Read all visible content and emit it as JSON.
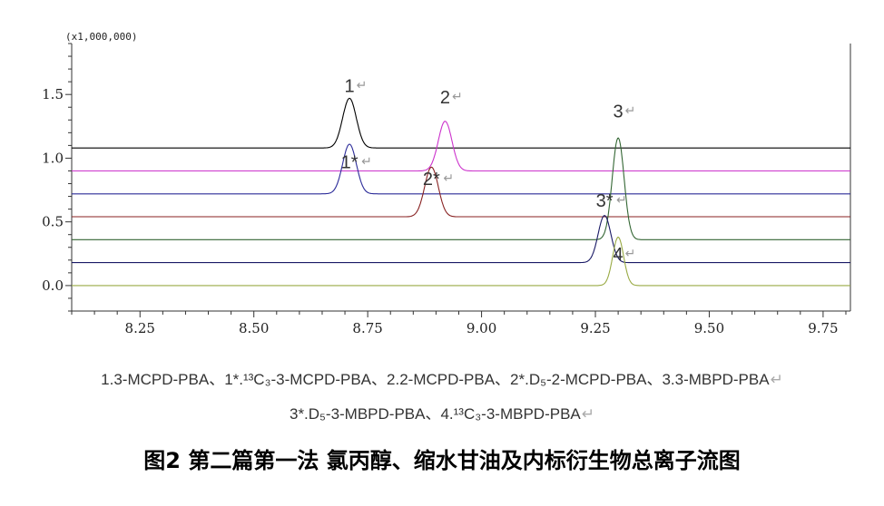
{
  "chart_data": {
    "type": "line",
    "y_scale_label": "(x1,000,000)",
    "xlim": [
      8.1,
      9.81
    ],
    "ylim": [
      -0.2,
      1.9
    ],
    "x_ticks": [
      8.25,
      8.5,
      8.75,
      9.0,
      9.25,
      9.5,
      9.75
    ],
    "x_tick_labels": [
      "8.25",
      "8.50",
      "8.75",
      "9.00",
      "9.25",
      "9.50",
      "9.75"
    ],
    "y_ticks": [
      0.0,
      0.5,
      1.0,
      1.5
    ],
    "y_tick_labels": [
      "0.0",
      "0.5",
      "1.0",
      "1.5"
    ],
    "grid": false,
    "series": [
      {
        "color": "#000000",
        "baseline": 1.08,
        "peak_x": 8.71,
        "peak_height": 0.39,
        "peak_width": 0.015,
        "xmin": 8.1,
        "xmax": 9.81
      },
      {
        "color": "#cc33cc",
        "baseline": 0.9,
        "peak_x": 8.92,
        "peak_height": 0.39,
        "peak_width": 0.015,
        "xmin": 8.1,
        "xmax": 9.81
      },
      {
        "color": "#2b2b99",
        "baseline": 0.72,
        "peak_x": 8.71,
        "peak_height": 0.39,
        "peak_width": 0.015,
        "xmin": 8.1,
        "xmax": 9.81
      },
      {
        "color": "#882222",
        "baseline": 0.54,
        "peak_x": 8.89,
        "peak_height": 0.39,
        "peak_width": 0.015,
        "xmin": 8.1,
        "xmax": 9.81
      },
      {
        "color": "#336633",
        "baseline": 0.36,
        "peak_x": 9.3,
        "peak_height": 0.8,
        "peak_width": 0.013,
        "xmin": 8.1,
        "xmax": 9.81
      },
      {
        "color": "#1a1a66",
        "baseline": 0.18,
        "peak_x": 9.27,
        "peak_height": 0.37,
        "peak_width": 0.014,
        "xmin": 8.1,
        "xmax": 9.81
      },
      {
        "color": "#99aa44",
        "baseline": 0.0,
        "peak_x": 9.3,
        "peak_height": 0.38,
        "peak_width": 0.012,
        "xmin": 8.1,
        "xmax": 9.81
      }
    ],
    "annotations": [
      {
        "text": "1",
        "x": 8.71,
        "y": 1.52
      },
      {
        "text": "2",
        "x": 8.92,
        "y": 1.43
      },
      {
        "text": "3",
        "x": 9.3,
        "y": 1.32
      },
      {
        "text": "1*",
        "x": 8.71,
        "y": 0.92
      },
      {
        "text": "2*",
        "x": 8.89,
        "y": 0.79
      },
      {
        "text": "3*",
        "x": 9.27,
        "y": 0.62
      },
      {
        "text": "4",
        "x": 9.3,
        "y": 0.2
      }
    ],
    "return_mark": "↵"
  },
  "caption": {
    "line1": "1.3-MCPD-PBA、1*.¹³C₃-3-MCPD-PBA、2.2-MCPD-PBA、2*.D₅-2-MCPD-PBA、3.3-MBPD-PBA",
    "line2": "3*.D₅-3-MBPD-PBA、4.¹³C₃-3-MBPD-PBA",
    "return_mark": "↵"
  },
  "figure_title": "图2 第二篇第一法 氯丙醇、缩水甘油及内标衍生物总离子流图"
}
